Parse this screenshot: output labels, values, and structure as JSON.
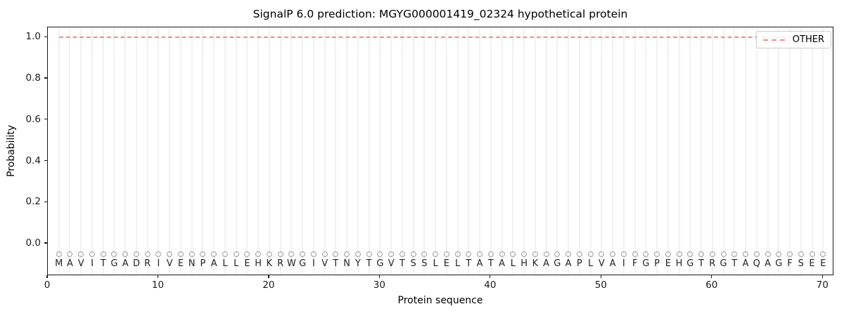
{
  "chart_data": {
    "type": "line",
    "title": "SignalP 6.0 prediction: MGYG000001419_02324 hypothetical protein",
    "xlabel": "Protein sequence",
    "ylabel": "Probability",
    "xlim": [
      0,
      71
    ],
    "ylim": [
      -0.157,
      1.049
    ],
    "xticks": [
      0,
      10,
      20,
      30,
      40,
      50,
      60,
      70
    ],
    "ytick_labels": [
      "0.0",
      "0.2",
      "0.4",
      "0.6",
      "0.8",
      "1.0"
    ],
    "grid": "vertical gridline at every residue position, color #f2f2f2",
    "legend": {
      "position": "upper-right",
      "entries": [
        {
          "label": "OTHER",
          "line_style": "dashed",
          "color": "#f28d8d"
        }
      ]
    },
    "series": [
      {
        "name": "OTHER",
        "color": "#f28d8d",
        "style": "dashed",
        "x_start": 1,
        "x_end": 70,
        "values": [
          1.0,
          1.0,
          1.0,
          1.0,
          1.0,
          1.0,
          1.0,
          1.0,
          1.0,
          1.0,
          1.0,
          1.0,
          1.0,
          1.0,
          1.0,
          1.0,
          1.0,
          1.0,
          1.0,
          1.0,
          1.0,
          1.0,
          1.0,
          1.0,
          1.0,
          1.0,
          1.0,
          1.0,
          1.0,
          1.0,
          1.0,
          1.0,
          1.0,
          1.0,
          1.0,
          1.0,
          1.0,
          1.0,
          1.0,
          1.0,
          1.0,
          1.0,
          1.0,
          1.0,
          1.0,
          1.0,
          1.0,
          1.0,
          1.0,
          1.0,
          1.0,
          1.0,
          1.0,
          1.0,
          1.0,
          1.0,
          1.0,
          1.0,
          1.0,
          1.0,
          1.0,
          1.0,
          1.0,
          1.0,
          1.0,
          1.0,
          1.0,
          1.0,
          1.0,
          1.0
        ]
      }
    ],
    "sequence": {
      "residues": "MAVITGADRIVENPALLEHKRWGIVTNYTGVTSSLELTATALHKAGAPLVAIFGPEHGTRGTAQAGFSEE",
      "length": 70,
      "marker": "open-circle",
      "marker_color": "#9e9e9e",
      "marker_y": -0.05,
      "letters_y": -0.1,
      "letter_color": "#262626"
    }
  },
  "colors": {
    "accent_line": "#f28d8d",
    "gridline": "#f2f2f2",
    "spine": "#1a1a1a",
    "background": "#ffffff"
  }
}
